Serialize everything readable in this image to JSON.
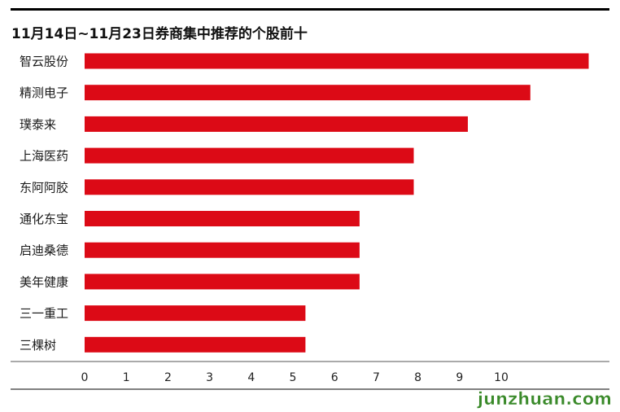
{
  "chart_data": {
    "type": "bar",
    "orientation": "horizontal",
    "title": "11月14日~11月23日券商集中推荐的个股前十",
    "categories": [
      "智云股份",
      "精测电子",
      "璞泰来",
      "上海医药",
      "东阿阿胶",
      "通化东宝",
      "启迪桑德",
      "美年健康",
      "三一重工",
      "三棵树"
    ],
    "values": [
      12.1,
      10.7,
      9.2,
      7.9,
      7.9,
      6.6,
      6.6,
      6.6,
      5.3,
      5.3
    ],
    "xticks": [
      "0",
      "1",
      "2",
      "3",
      "4",
      "5",
      "6",
      "7",
      "8",
      "9",
      "10"
    ],
    "xlim": [
      0,
      12.6
    ],
    "grid": false,
    "bar_color": "#dc0a16"
  },
  "colors": {
    "accent": "#dc0a16",
    "rule": "#000000",
    "watermark": "#3a8a2a"
  },
  "watermark": {
    "text": "junzhuan.com"
  }
}
